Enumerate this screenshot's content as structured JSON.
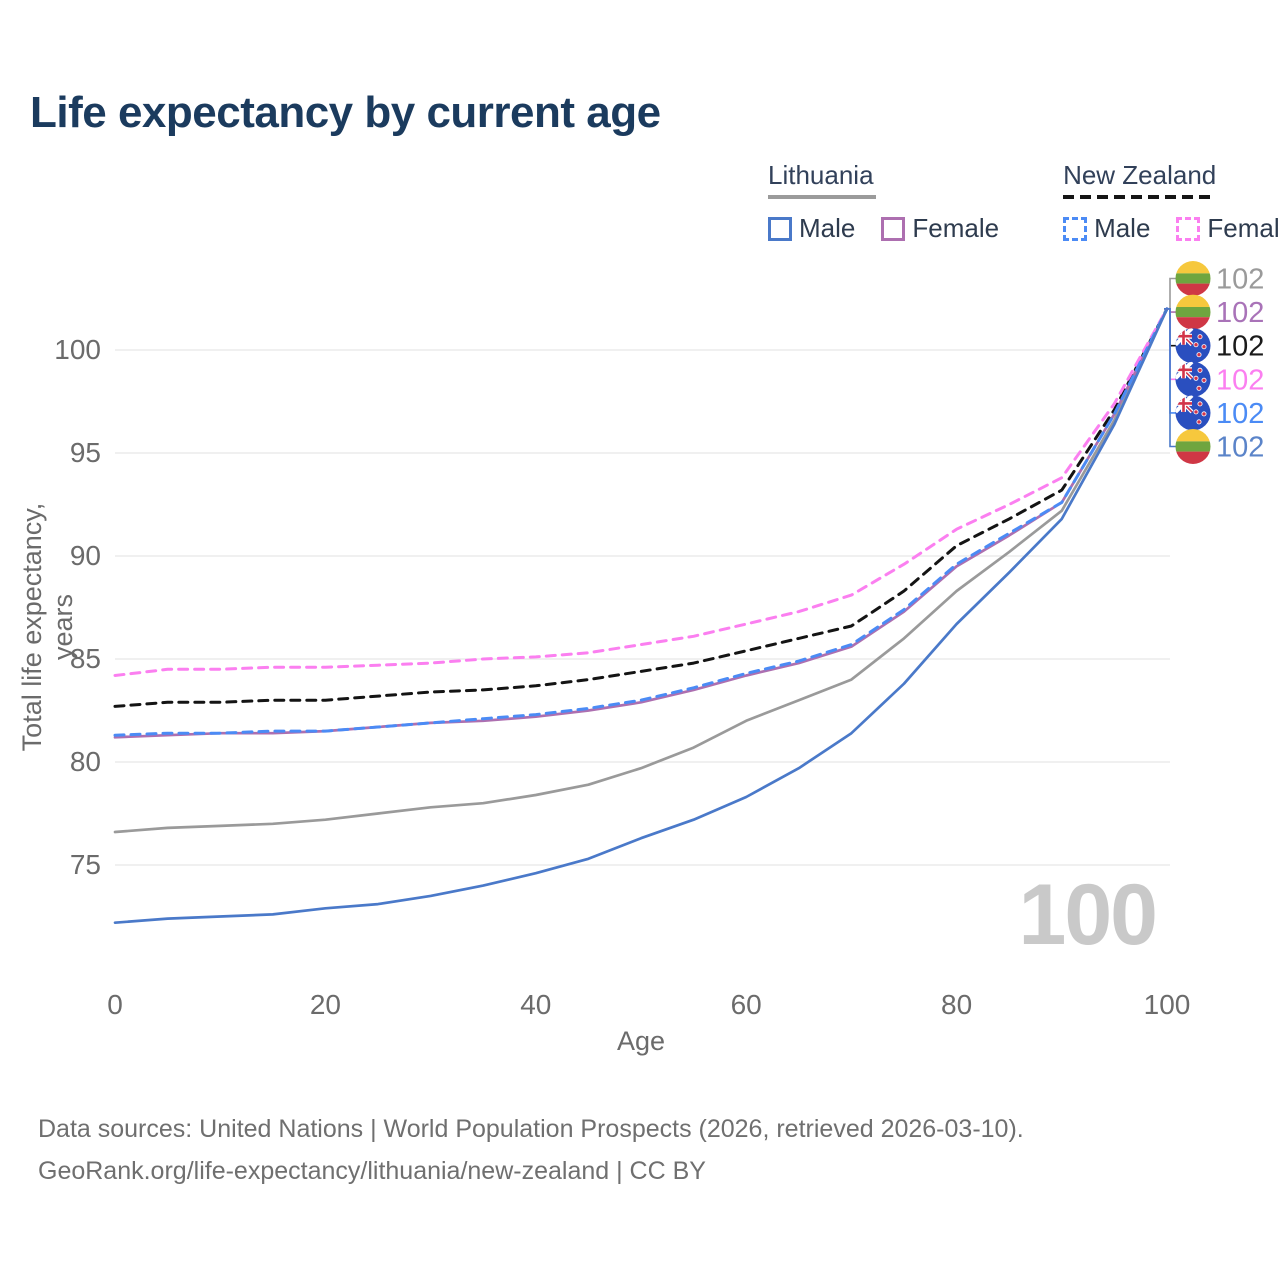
{
  "title": "Life expectancy by current age",
  "watermark": {
    "text": "100"
  },
  "legend": {
    "groups": [
      {
        "name": "Lithuania",
        "line_style": "solid",
        "underline_color": "#9b9b9b",
        "items": [
          {
            "label": "Male",
            "color": "#4a79c9",
            "dashed": false
          },
          {
            "label": "Female",
            "color": "#ad6fb0",
            "dashed": false
          }
        ]
      },
      {
        "name": "New Zealand",
        "line_style": "dashed",
        "underline_color": "#151515",
        "items": [
          {
            "label": "Male",
            "color": "#4b8bf5",
            "dashed": true
          },
          {
            "label": "Female",
            "color": "#fb7ff0",
            "dashed": true
          }
        ]
      }
    ]
  },
  "chart_data": {
    "type": "line",
    "title": "Life expectancy by current age",
    "xlabel": "Age",
    "ylabel": "Total life expectancy, years",
    "x_ticks": [
      0,
      20,
      40,
      60,
      80,
      100
    ],
    "y_ticks": [
      75,
      80,
      85,
      90,
      95,
      100
    ],
    "xlim": [
      0,
      100
    ],
    "ylim": [
      71.5,
      103
    ],
    "grid": "horizontal-only",
    "legend_position": "top-right",
    "x": [
      0,
      5,
      10,
      15,
      20,
      25,
      30,
      35,
      40,
      45,
      50,
      55,
      60,
      65,
      70,
      75,
      80,
      85,
      90,
      95,
      100
    ],
    "series": [
      {
        "name": "Lithuania Total",
        "country": "Lithuania",
        "gender": "Total",
        "color": "#9a9a9a",
        "dashed": false,
        "end_label": "102",
        "end_label_color": "#9a9a9a",
        "flag": "lithuania",
        "end_row": 0,
        "values": [
          76.6,
          76.8,
          76.9,
          77.0,
          77.2,
          77.5,
          77.8,
          78.0,
          78.4,
          78.9,
          79.7,
          80.7,
          82.0,
          83.0,
          84.0,
          86.0,
          88.3,
          90.2,
          92.2,
          96.6,
          102
        ]
      },
      {
        "name": "Lithuania Female",
        "country": "Lithuania",
        "gender": "Female",
        "color": "#ad6fb0",
        "dashed": false,
        "end_label": "102",
        "end_label_color": "#a973b8",
        "flag": "lithuania",
        "end_row": 1,
        "values": [
          81.2,
          81.3,
          81.4,
          81.4,
          81.5,
          81.7,
          81.9,
          82.0,
          82.2,
          82.5,
          82.9,
          83.5,
          84.2,
          84.8,
          85.6,
          87.3,
          89.5,
          91.0,
          92.6,
          96.9,
          102
        ]
      },
      {
        "name": "New Zealand Total",
        "country": "New Zealand",
        "gender": "Total",
        "color": "#141414",
        "dashed": true,
        "end_label": "102",
        "end_label_color": "#1a1a1a",
        "flag": "new-zealand",
        "end_row": 2,
        "values": [
          82.7,
          82.9,
          82.9,
          83.0,
          83.0,
          83.2,
          83.4,
          83.5,
          83.7,
          84.0,
          84.4,
          84.8,
          85.4,
          86.0,
          86.6,
          88.3,
          90.5,
          91.8,
          93.2,
          97.1,
          102
        ]
      },
      {
        "name": "New Zealand Female",
        "country": "New Zealand",
        "gender": "Female",
        "color": "#fb7ff0",
        "dashed": true,
        "end_label": "102",
        "end_label_color": "#fb7ff0",
        "flag": "new-zealand",
        "end_row": 3,
        "values": [
          84.2,
          84.5,
          84.5,
          84.6,
          84.6,
          84.7,
          84.8,
          85.0,
          85.1,
          85.3,
          85.7,
          86.1,
          86.7,
          87.3,
          88.1,
          89.6,
          91.3,
          92.5,
          93.8,
          97.4,
          102
        ]
      },
      {
        "name": "New Zealand Male",
        "country": "New Zealand",
        "gender": "Male",
        "color": "#4b8bf5",
        "dashed": true,
        "end_label": "102",
        "end_label_color": "#4b8bf5",
        "flag": "new-zealand",
        "end_row": 4,
        "values": [
          81.3,
          81.4,
          81.4,
          81.5,
          81.5,
          81.7,
          81.9,
          82.1,
          82.3,
          82.6,
          83.0,
          83.6,
          84.3,
          84.9,
          85.7,
          87.4,
          89.6,
          91.1,
          92.6,
          96.9,
          102
        ]
      },
      {
        "name": "Lithuania Male",
        "country": "Lithuania",
        "gender": "Male",
        "color": "#4a79c9",
        "dashed": false,
        "end_label": "102",
        "end_label_color": "#5b84c9",
        "flag": "lithuania",
        "end_row": 5,
        "values": [
          72.2,
          72.4,
          72.5,
          72.6,
          72.9,
          73.1,
          73.5,
          74.0,
          74.6,
          75.3,
          76.3,
          77.2,
          78.3,
          79.7,
          81.4,
          83.8,
          86.7,
          89.2,
          91.8,
          96.4,
          102
        ]
      }
    ]
  },
  "flag_colors": {
    "lithuania": {
      "yellow": "#f6c83d",
      "green": "#6fa53f",
      "red": "#cf3745"
    },
    "new_zealand": {
      "blue": "#2a4fbf",
      "red": "#d2344a",
      "white": "#ffffff"
    }
  },
  "footer": {
    "line1": "Data sources: United Nations | World Population Prospects (2026, retrieved 2026-03-10).",
    "line2": "GeoRank.org/life-expectancy/lithuania/new-zealand | CC BY"
  }
}
